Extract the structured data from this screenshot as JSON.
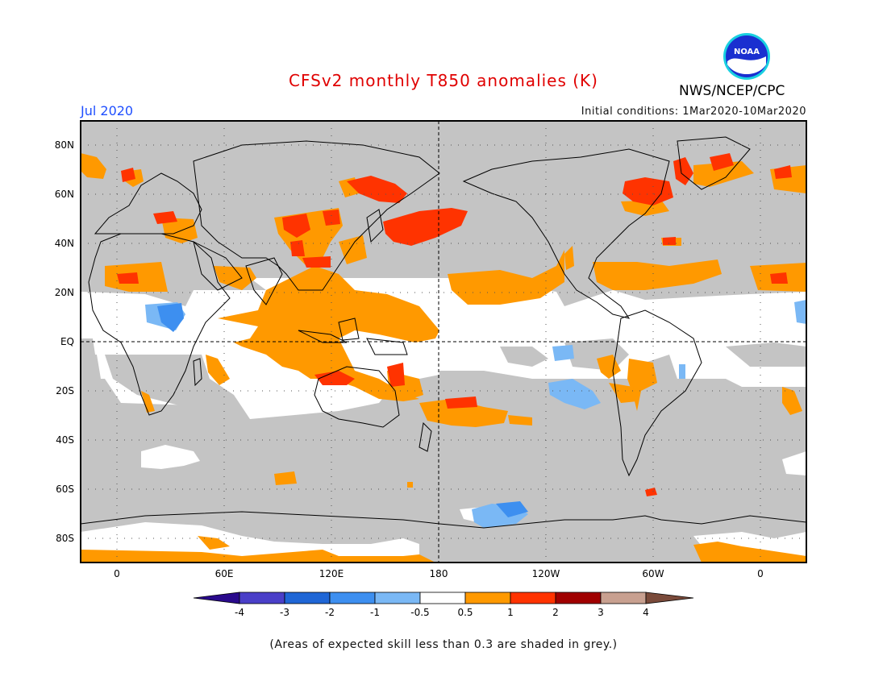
{
  "header": {
    "title": "CFSv2 monthly T850 anomalies (K)",
    "month": "Jul 2020",
    "agency": "NWS/NCEP/CPC",
    "initial_conditions": "Initial conditions: 1Mar2020-10Mar2020",
    "logo_text": "NOAA"
  },
  "axes": {
    "lat_labels": [
      "80N",
      "60N",
      "40N",
      "20N",
      "EQ",
      "20S",
      "40S",
      "60S",
      "80S"
    ],
    "lon_labels": [
      "0",
      "60E",
      "120E",
      "180",
      "120W",
      "60W",
      "0"
    ]
  },
  "colorbar": {
    "labels": [
      "-4",
      "-3",
      "-2",
      "-1",
      "-0.5",
      "0.5",
      "1",
      "2",
      "3",
      "4"
    ],
    "colors": [
      "#2a0a8c",
      "#4a3fc8",
      "#1f66d6",
      "#3d8ff0",
      "#7ab8f5",
      "#ffffff",
      "#ff9900",
      "#ff3300",
      "#a00000",
      "#c8a090",
      "#7a4a3a"
    ]
  },
  "legend_colors": {
    "grey": "#c4c4c4",
    "white": "#ffffff",
    "orange": "#ff9900",
    "red": "#ff3300",
    "light_blue": "#7ab8f5",
    "blue": "#3d8ff0"
  },
  "footnote": "(Areas of expected skill less than 0.3 are shaded in grey.)"
}
